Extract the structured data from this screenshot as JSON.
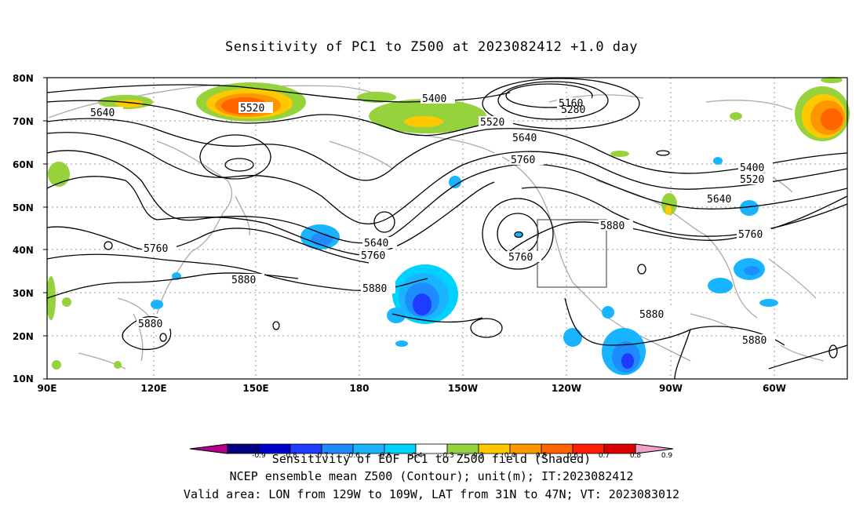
{
  "title": "Sensitivity of PC1 to Z500 at 2023082412 +1.0 day",
  "footer": {
    "line1": "Sensitivity of EOF PC1 to Z500 field (Shaded)",
    "line2": "NCEP ensemble mean Z500 (Contour); unit(m); IT:2023082412",
    "line3": "Valid area: LON from 129W to 109W, LAT from 31N to 47N; VT: 2023083012"
  },
  "axes": {
    "lat_labels": [
      "80N",
      "70N",
      "60N",
      "50N",
      "40N",
      "30N",
      "20N",
      "10N"
    ],
    "lon_labels": [
      "90E",
      "120E",
      "150E",
      "180",
      "150W",
      "120W",
      "90W",
      "60W"
    ]
  },
  "colorbar": {
    "labels": [
      "-0.9",
      "-0.8",
      "-0.7",
      "-0.6",
      "-0.5",
      "-0.4",
      "-0.3",
      "0.3",
      "0.4",
      "0.5",
      "0.6",
      "0.7",
      "0.8",
      "0.9"
    ],
    "colors": [
      "#b5008c",
      "#000080",
      "#0000cd",
      "#1e3cff",
      "#1e8cff",
      "#19b4ff",
      "#00d2ff",
      "#ffffff",
      "#96d23c",
      "#ffc800",
      "#ff9600",
      "#ff6400",
      "#ff1e00",
      "#dc0000",
      "#f0a0c8"
    ]
  },
  "contour_labels": {
    "c5640_w": "5640",
    "c5520_nw": "5520",
    "c5400_n": "5400",
    "c5160": "5160",
    "c5280": "5280",
    "c5520_n": "5520",
    "c5640_nc": "5640",
    "c5760_nc": "5760",
    "c5400_e": "5400",
    "c5520_e": "5520",
    "c5640_e": "5640",
    "c5760_e": "5760",
    "c5880_ne": "5880",
    "c5640_c": "5640",
    "c5760_c": "5760",
    "c5760_low": "5760",
    "c5760_w": "5760",
    "c5880_w": "5880",
    "c5880_c": "5880",
    "c5880_sw": "5880",
    "c5880_s": "5880",
    "c5880_se": "5880"
  }
}
